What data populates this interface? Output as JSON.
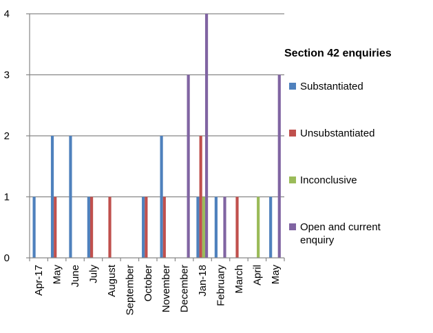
{
  "chart_data": {
    "type": "bar",
    "legend_title": "Section 42 enquiries",
    "legend_position": "right",
    "grid": true,
    "ylim": [
      0,
      4
    ],
    "yticks": [
      "0",
      "1",
      "2",
      "3",
      "4"
    ],
    "categories": [
      "Apr-17",
      "May",
      "June",
      "July",
      "August",
      "September",
      "October",
      "November",
      "December",
      "Jan-18",
      "February",
      "March",
      "April",
      "May"
    ],
    "series": [
      {
        "name": "Substantiated",
        "color": "#4F81BD",
        "values": [
          1,
          2,
          2,
          1,
          0,
          0,
          1,
          2,
          0,
          1,
          1,
          0,
          0,
          1
        ]
      },
      {
        "name": "Unsubstantiated",
        "color": "#C0504D",
        "values": [
          0,
          1,
          0,
          1,
          1,
          0,
          1,
          1,
          0,
          2,
          0,
          1,
          0,
          0
        ]
      },
      {
        "name": "Inconclusive",
        "color": "#9BBB59",
        "values": [
          0,
          0,
          0,
          0,
          0,
          0,
          0,
          0,
          0,
          1,
          0,
          0,
          1,
          0
        ]
      },
      {
        "name": "Open and current enquiry",
        "color": "#8064A2",
        "values": [
          0,
          0,
          0,
          0,
          0,
          0,
          0,
          0,
          3,
          4,
          1,
          0,
          0,
          3
        ]
      }
    ]
  }
}
